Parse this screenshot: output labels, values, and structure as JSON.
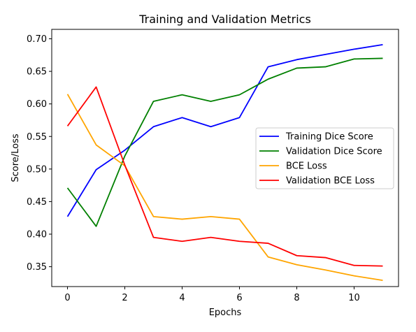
{
  "chart_data": {
    "type": "line",
    "title": "Training and Validation Metrics",
    "xlabel": "Epochs",
    "ylabel": "Score/Loss",
    "xlim": [
      -0.55,
      11.55
    ],
    "ylim": [
      0.3195,
      0.7145
    ],
    "x_ticks": [
      0,
      2,
      4,
      6,
      8,
      10
    ],
    "y_ticks": [
      0.35,
      0.4,
      0.45,
      0.5,
      0.55,
      0.6,
      0.65,
      0.7
    ],
    "x_tick_labels": [
      "0",
      "2",
      "4",
      "6",
      "8",
      "10"
    ],
    "y_tick_labels": [
      "0.35",
      "0.40",
      "0.45",
      "0.50",
      "0.55",
      "0.60",
      "0.65",
      "0.70"
    ],
    "grid": false,
    "legend_position": "center-right",
    "x": [
      0,
      1,
      2,
      3,
      4,
      5,
      6,
      7,
      8,
      9,
      10,
      11
    ],
    "series": [
      {
        "name": "Training Dice Score",
        "color": "#0000ff",
        "values": [
          0.427,
          0.499,
          0.529,
          0.565,
          0.579,
          0.565,
          0.579,
          0.657,
          0.668,
          0.676,
          0.684,
          0.691
        ]
      },
      {
        "name": "Validation Dice Score",
        "color": "#008000",
        "values": [
          0.471,
          0.412,
          0.52,
          0.604,
          0.614,
          0.604,
          0.614,
          0.638,
          0.655,
          0.657,
          0.669,
          0.67
        ]
      },
      {
        "name": "BCE Loss",
        "color": "#ffa500",
        "values": [
          0.615,
          0.537,
          0.505,
          0.427,
          0.423,
          0.427,
          0.423,
          0.365,
          0.353,
          0.345,
          0.336,
          0.329
        ]
      },
      {
        "name": "Validation BCE Loss",
        "color": "#ff0000",
        "values": [
          0.566,
          0.626,
          0.506,
          0.395,
          0.389,
          0.395,
          0.389,
          0.386,
          0.367,
          0.364,
          0.352,
          0.351
        ]
      }
    ]
  }
}
